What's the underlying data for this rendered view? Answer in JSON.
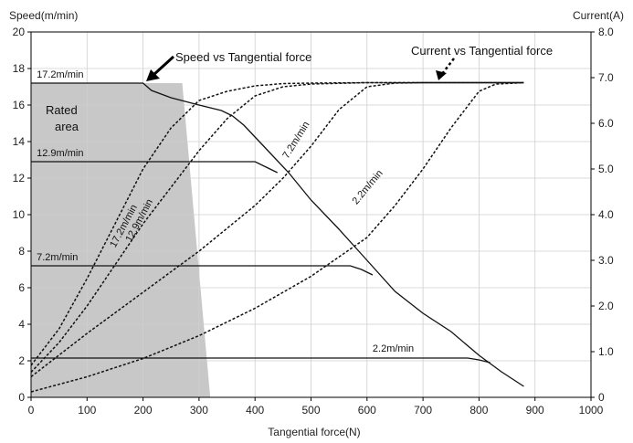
{
  "chart_data": {
    "type": "line",
    "x_label": "Tangential force(N)",
    "y_left_label": "Speed(m/min)",
    "y_right_label": "Current(A)",
    "xlim": [
      0,
      1000
    ],
    "ylim_left": [
      0,
      20
    ],
    "ylim_right": [
      0,
      8.0
    ],
    "x_ticks": [
      "0",
      "100",
      "200",
      "300",
      "400",
      "500",
      "600",
      "700",
      "800",
      "900",
      "1000"
    ],
    "y_left_ticks": [
      "0",
      "2",
      "4",
      "6",
      "8",
      "10",
      "12",
      "14",
      "16",
      "18",
      "20"
    ],
    "y_right_ticks": [
      "0",
      "1.0",
      "2.0",
      "3.0",
      "4.0",
      "5.0",
      "6.0",
      "7.0",
      "8.0"
    ],
    "grid": true,
    "annotations": {
      "speed_curve": "Speed vs Tangential force",
      "current_curve": "Current vs Tangential force",
      "rated_area": [
        "Rated",
        "area"
      ]
    },
    "rated_area_polygon": [
      [
        0,
        17.2
      ],
      [
        270,
        17.2
      ],
      [
        320,
        0
      ],
      [
        0,
        0
      ]
    ],
    "speed_series": [
      {
        "name": "17.2m/min",
        "label_at": [
          10,
          17.5
        ],
        "points": [
          [
            0,
            17.2
          ],
          [
            200,
            17.2
          ],
          [
            215,
            16.8
          ],
          [
            250,
            16.4
          ],
          [
            300,
            16.0
          ],
          [
            340,
            15.7
          ],
          [
            360,
            15.4
          ],
          [
            380,
            14.9
          ],
          [
            420,
            13.6
          ],
          [
            460,
            12.3
          ],
          [
            500,
            10.8
          ],
          [
            550,
            9.2
          ],
          [
            600,
            7.5
          ],
          [
            650,
            5.8
          ],
          [
            700,
            4.6
          ],
          [
            750,
            3.6
          ],
          [
            800,
            2.3
          ],
          [
            840,
            1.4
          ],
          [
            880,
            0.6
          ]
        ]
      },
      {
        "name": "12.9m/min",
        "label_at": [
          10,
          13.2
        ],
        "points": [
          [
            0,
            12.9
          ],
          [
            400,
            12.9
          ],
          [
            420,
            12.6
          ],
          [
            440,
            12.3
          ]
        ]
      },
      {
        "name": "7.2m/min",
        "label_at": [
          10,
          7.5
        ],
        "points": [
          [
            0,
            7.2
          ],
          [
            570,
            7.2
          ],
          [
            590,
            7.0
          ],
          [
            610,
            6.7
          ]
        ]
      },
      {
        "name": "2.2m/min",
        "label_at": [
          610,
          2.5
        ],
        "points": [
          [
            0,
            2.15
          ],
          [
            780,
            2.15
          ],
          [
            800,
            2.05
          ],
          [
            820,
            1.9
          ]
        ]
      }
    ],
    "current_series": [
      {
        "name": "17.2m/min",
        "label_at": [
          170,
          9.3
        ],
        "label_angle": -62,
        "points": [
          [
            0,
            0.7
          ],
          [
            50,
            1.5
          ],
          [
            100,
            2.6
          ],
          [
            150,
            3.8
          ],
          [
            200,
            5.0
          ],
          [
            250,
            5.9
          ],
          [
            300,
            6.5
          ],
          [
            350,
            6.7
          ],
          [
            400,
            6.82
          ],
          [
            450,
            6.87
          ],
          [
            500,
            6.88
          ],
          [
            600,
            6.89
          ],
          [
            700,
            6.89
          ],
          [
            800,
            6.89
          ],
          [
            880,
            6.89
          ]
        ]
      },
      {
        "name": "12.9m/min",
        "label_at": [
          198,
          9.6
        ],
        "label_angle": -62,
        "points": [
          [
            0,
            0.55
          ],
          [
            50,
            1.2
          ],
          [
            100,
            2.0
          ],
          [
            150,
            2.9
          ],
          [
            200,
            3.8
          ],
          [
            250,
            4.6
          ],
          [
            300,
            5.4
          ],
          [
            350,
            6.1
          ],
          [
            400,
            6.6
          ],
          [
            450,
            6.8
          ],
          [
            500,
            6.86
          ],
          [
            600,
            6.89
          ],
          [
            700,
            6.89
          ],
          [
            800,
            6.89
          ],
          [
            880,
            6.89
          ]
        ]
      },
      {
        "name": "7.2m/min",
        "label_at": [
          478,
          14.0
        ],
        "label_angle": -58,
        "points": [
          [
            0,
            0.45
          ],
          [
            100,
            1.4
          ],
          [
            200,
            2.3
          ],
          [
            300,
            3.2
          ],
          [
            400,
            4.2
          ],
          [
            450,
            4.8
          ],
          [
            500,
            5.5
          ],
          [
            550,
            6.3
          ],
          [
            600,
            6.8
          ],
          [
            650,
            6.88
          ],
          [
            700,
            6.89
          ],
          [
            800,
            6.89
          ],
          [
            880,
            6.89
          ]
        ]
      },
      {
        "name": "2.2m/min",
        "label_at": [
          605,
          11.4
        ],
        "label_angle": -50,
        "points": [
          [
            0,
            0.12
          ],
          [
            100,
            0.45
          ],
          [
            200,
            0.85
          ],
          [
            300,
            1.35
          ],
          [
            400,
            1.95
          ],
          [
            500,
            2.65
          ],
          [
            600,
            3.5
          ],
          [
            650,
            4.2
          ],
          [
            700,
            5.0
          ],
          [
            750,
            5.9
          ],
          [
            800,
            6.7
          ],
          [
            830,
            6.86
          ],
          [
            880,
            6.89
          ]
        ]
      }
    ]
  }
}
